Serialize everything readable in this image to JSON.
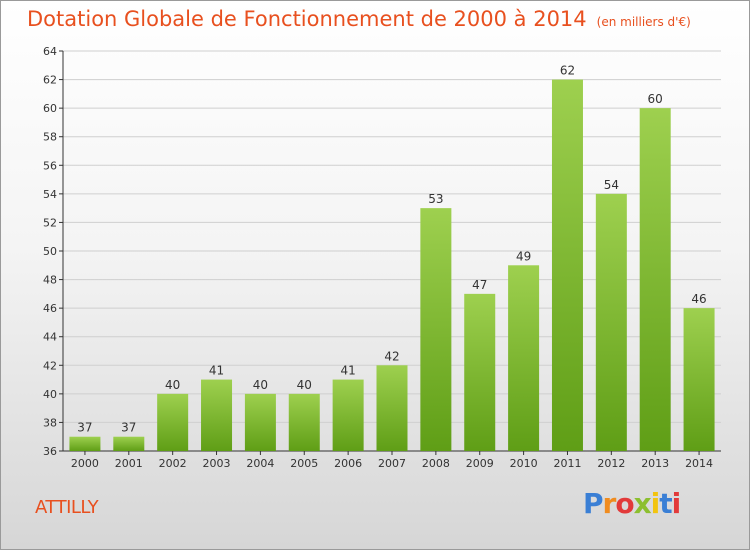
{
  "title": "Dotation Globale de Fonctionnement de 2000 à 2014",
  "subtitle": "(en milliers d'€)",
  "commune": "ATTILLY",
  "logo_text": "Proxiti",
  "colors": {
    "title": "#e8501f",
    "bar_light": "#9ed04f",
    "bar_dark": "#5f9e16",
    "axis": "#333333",
    "grid": "#cfcfcf"
  },
  "chart_data": {
    "type": "bar",
    "title": "Dotation Globale de Fonctionnement de 2000 à 2014",
    "subtitle": "(en milliers d'€)",
    "xlabel": "",
    "ylabel": "",
    "categories": [
      "2000",
      "2001",
      "2002",
      "2003",
      "2004",
      "2005",
      "2006",
      "2007",
      "2008",
      "2009",
      "2010",
      "2011",
      "2012",
      "2013",
      "2014"
    ],
    "values": [
      37,
      37,
      40,
      41,
      40,
      40,
      41,
      42,
      53,
      47,
      49,
      62,
      54,
      60,
      46
    ],
    "ylim": [
      36,
      64
    ],
    "yticks": [
      36,
      38,
      40,
      42,
      44,
      46,
      48,
      50,
      52,
      54,
      56,
      58,
      60,
      62,
      64
    ],
    "grid": true,
    "data_labels": true
  }
}
